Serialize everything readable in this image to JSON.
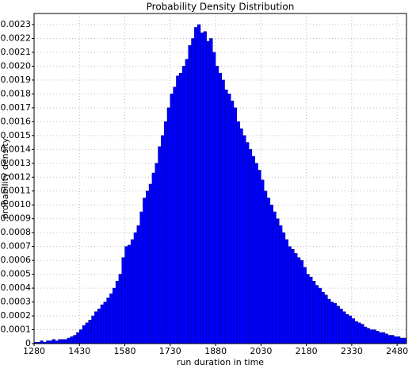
{
  "chart_data": {
    "type": "histogram",
    "title": "Probability Density Distribution",
    "x_label": "run duration in time",
    "y_label": "probability density",
    "color": "#0000ff",
    "edge_color": "#00008b",
    "grid": true,
    "bins": [
      1280,
      1290,
      1300,
      1310,
      1320,
      1330,
      1340,
      1350,
      1360,
      1370,
      1380,
      1390,
      1400,
      1410,
      1420,
      1430,
      1440,
      1450,
      1460,
      1470,
      1480,
      1490,
      1500,
      1510,
      1520,
      1530,
      1540,
      1550,
      1560,
      1570,
      1580,
      1590,
      1600,
      1610,
      1620,
      1630,
      1640,
      1650,
      1660,
      1670,
      1680,
      1690,
      1700,
      1710,
      1720,
      1730,
      1740,
      1750,
      1760,
      1770,
      1780,
      1790,
      1800,
      1810,
      1820,
      1830,
      1840,
      1850,
      1860,
      1870,
      1880,
      1890,
      1900,
      1910,
      1920,
      1930,
      1940,
      1950,
      1960,
      1970,
      1980,
      1990,
      2000,
      2010,
      2020,
      2030,
      2040,
      2050,
      2060,
      2070,
      2080,
      2090,
      2100,
      2110,
      2120,
      2130,
      2140,
      2150,
      2160,
      2170,
      2180,
      2190,
      2200,
      2210,
      2220,
      2230,
      2240,
      2250,
      2260,
      2270,
      2280,
      2290,
      2300,
      2310,
      2320,
      2330,
      2340,
      2350,
      2360,
      2370,
      2380,
      2390,
      2400,
      2410,
      2420,
      2430,
      2440,
      2450,
      2460,
      2470,
      2480,
      2490,
      2500,
      2510
    ],
    "values": [
      1e-05,
      1e-05,
      2e-05,
      1e-05,
      2e-05,
      2e-05,
      3e-05,
      2e-05,
      3e-05,
      3e-05,
      3e-05,
      4e-05,
      5e-05,
      6e-05,
      8e-05,
      0.0001,
      0.00013,
      0.00015,
      0.00017,
      0.0002,
      0.00023,
      0.00025,
      0.00028,
      0.0003,
      0.00033,
      0.00036,
      0.0004,
      0.00045,
      0.0005,
      0.00062,
      0.0007,
      0.00071,
      0.00075,
      0.0008,
      0.00085,
      0.00095,
      0.00105,
      0.0011,
      0.00115,
      0.00123,
      0.0013,
      0.00142,
      0.0015,
      0.0016,
      0.0017,
      0.0018,
      0.00185,
      0.00193,
      0.00195,
      0.002,
      0.00205,
      0.00215,
      0.0022,
      0.00228,
      0.0023,
      0.00224,
      0.00225,
      0.00218,
      0.0022,
      0.0021,
      0.002,
      0.00195,
      0.0019,
      0.00183,
      0.0018,
      0.00175,
      0.0017,
      0.0016,
      0.00155,
      0.0015,
      0.00145,
      0.0014,
      0.00135,
      0.0013,
      0.00125,
      0.00118,
      0.0011,
      0.00105,
      0.001,
      0.00095,
      0.0009,
      0.00085,
      0.0008,
      0.00075,
      0.0007,
      0.00068,
      0.00065,
      0.00062,
      0.0006,
      0.00055,
      0.0005,
      0.00048,
      0.00045,
      0.00042,
      0.0004,
      0.00037,
      0.00035,
      0.00032,
      0.0003,
      0.00029,
      0.00027,
      0.00025,
      0.00023,
      0.00021,
      0.0002,
      0.00018,
      0.00016,
      0.00015,
      0.00014,
      0.00012,
      0.00011,
      0.0001,
      0.0001,
      9e-05,
      8e-05,
      8e-05,
      7e-05,
      6e-05,
      6e-05,
      5e-05,
      5e-05,
      4e-05,
      4e-05
    ],
    "xlim": [
      1280,
      2511
    ],
    "xticks": [
      1280,
      1430,
      1580,
      1730,
      1880,
      2030,
      2180,
      2330,
      2480
    ],
    "ylim": [
      0,
      0.00238
    ],
    "yticks": [
      0,
      0.0001,
      0.0002,
      0.0003,
      0.0004,
      0.0005,
      0.0006,
      0.0007,
      0.0008,
      0.0009,
      {
        "value": 0.001,
        "label": "0.0010"
      },
      0.0011,
      0.0012,
      0.0013,
      0.0014,
      0.0015,
      0.0016,
      0.0017,
      0.0018,
      0.0019,
      {
        "value": 0.002,
        "label": "0.0020"
      },
      0.0021,
      0.0022,
      0.0023
    ]
  }
}
